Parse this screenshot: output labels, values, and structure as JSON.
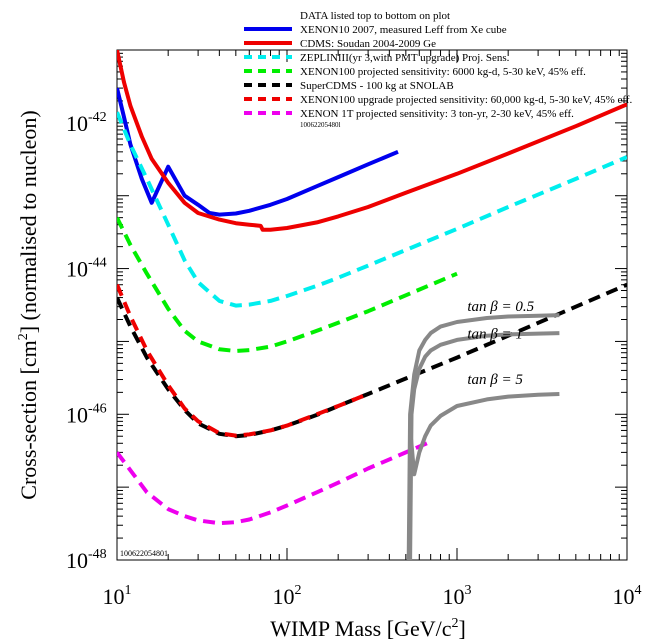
{
  "chart_data": {
    "type": "line",
    "xlabel": "WIMP Mass [GeV/c",
    "xlabel_sup": "2",
    "xlabel_end": "]",
    "ylabel": "Cross-section [cm",
    "ylabel_sup": "2",
    "ylabel_end": "] (normalised to nucleon)",
    "x_scale": "log",
    "y_scale": "log",
    "xlim": [
      10,
      10000
    ],
    "ylim": [
      1e-48,
      1e-41
    ],
    "x_ticks": [
      {
        "value": 10,
        "base": "10",
        "exp": "1"
      },
      {
        "value": 100,
        "base": "10",
        "exp": "2"
      },
      {
        "value": 1000,
        "base": "10",
        "exp": "3"
      },
      {
        "value": 10000,
        "base": "10",
        "exp": "4"
      }
    ],
    "y_ticks": [
      {
        "value": 1e-48,
        "base": "10",
        "exp": "-48"
      },
      {
        "value": 1e-46,
        "base": "10",
        "exp": "-46"
      },
      {
        "value": 1e-44,
        "base": "10",
        "exp": "-44"
      },
      {
        "value": 1e-42,
        "base": "10",
        "exp": "-42"
      }
    ],
    "legend_header": "DATA listed top to bottom on plot",
    "legend_id": "10062205480l",
    "legend_position": "top",
    "plot_stamp": "100622054801",
    "series": [
      {
        "name": "XENON10 2007, measured Leff from Xe cube",
        "color": "#0000ee",
        "dash": "solid",
        "x": [
          10,
          11,
          12,
          14,
          16,
          20,
          25,
          30,
          35,
          40,
          50,
          60,
          80,
          100,
          150,
          200,
          300,
          450
        ],
        "y": [
          3e-42,
          1.2e-42,
          5e-43,
          1.7e-43,
          8e-44,
          2.5e-43,
          1e-43,
          7.5e-44,
          5.8e-44,
          5.5e-44,
          5.7e-44,
          6.2e-44,
          7.5e-44,
          9e-44,
          1.35e-43,
          1.8e-43,
          2.7e-43,
          4e-43
        ]
      },
      {
        "name": "CDMS: Soudan 2004-2009 Ge",
        "color": "#ee0000",
        "dash": "solid",
        "x": [
          10,
          11,
          12,
          14,
          16,
          20,
          25,
          30,
          40,
          50,
          60,
          70,
          72,
          80,
          100,
          150,
          200,
          300,
          500,
          1000,
          2000,
          5000,
          10000
        ],
        "y": [
          1e-41,
          3.6e-42,
          1.7e-42,
          6.5e-43,
          3.2e-43,
          1.5e-43,
          8e-44,
          5.8e-44,
          4.7e-44,
          4.2e-44,
          4e-44,
          3.85e-44,
          3.4e-44,
          3.4e-44,
          3.6e-44,
          4.3e-44,
          5.2e-44,
          7e-44,
          1.1e-43,
          2e-43,
          3.8e-43,
          9e-43,
          1.8e-42
        ]
      },
      {
        "name": "ZEPLINIII(yr 3,with PMT upgrade) Proj. Sens.",
        "color": "#00eeee",
        "dash": "dashed",
        "x": [
          10,
          12,
          15,
          20,
          25,
          30,
          40,
          50,
          60,
          80,
          100,
          150,
          200,
          300,
          500,
          1000,
          2000,
          5000,
          10000
        ],
        "y": [
          1.4e-42,
          5e-43,
          1.7e-43,
          4e-44,
          1.3e-44,
          6.5e-45,
          3.6e-45,
          3.1e-45,
          3.2e-45,
          3.6e-45,
          4.2e-45,
          5.8e-45,
          7.5e-45,
          1.1e-44,
          1.8e-44,
          3.5e-44,
          7e-44,
          1.7e-43,
          3.4e-43
        ]
      },
      {
        "name": "XENON100 projected sensitivity: 6000 kg-d, 5-30 keV, 45% eff.",
        "color": "#00ee00",
        "dash": "dashed",
        "x": [
          10,
          12,
          15,
          20,
          25,
          30,
          40,
          50,
          60,
          80,
          100,
          150,
          200,
          300,
          500,
          1000
        ],
        "y": [
          5e-44,
          2.1e-44,
          8.5e-45,
          2.8e-45,
          1.4e-45,
          1e-45,
          7.8e-46,
          7.4e-46,
          7.6e-46,
          8.5e-46,
          1e-45,
          1.4e-45,
          1.8e-45,
          2.6e-45,
          4.3e-45,
          8.5e-45
        ]
      },
      {
        "name": "SuperCDMS - 100 kg at SNOLAB",
        "color": "#000000",
        "dash": "dashed",
        "x": [
          10,
          12,
          15,
          20,
          25,
          30,
          40,
          50,
          60,
          80,
          100,
          150,
          200,
          300,
          500,
          1000,
          2000,
          5000,
          10000
        ],
        "y": [
          4e-45,
          1.6e-45,
          6e-46,
          2.2e-46,
          1.15e-46,
          7.5e-47,
          5.4e-47,
          5e-47,
          5.2e-47,
          6e-47,
          7e-47,
          9.8e-47,
          1.3e-46,
          1.9e-46,
          3.1e-46,
          6e-46,
          1.2e-45,
          3e-45,
          6e-45
        ]
      },
      {
        "name": "XENON100 upgrade projected sensitivity: 60,000 kg-d, 5-30 keV, 45% eff.",
        "color": "#ee0000",
        "dash": "dashed",
        "x": [
          10,
          12,
          15,
          20,
          25,
          30,
          40,
          50,
          60,
          80,
          100,
          150,
          200,
          300
        ],
        "y": [
          6e-45,
          2.2e-45,
          7.5e-46,
          2.5e-46,
          1.2e-46,
          8e-47,
          5.5e-47,
          5.1e-47,
          5.3e-47,
          6e-47,
          7e-47,
          1e-46,
          1.3e-46,
          1.9e-46
        ]
      },
      {
        "name": "XENON 1T projected sensitivity: 3 ton-yr, 2-30 keV, 45% eff.",
        "color": "#ee00ee",
        "dash": "dashed",
        "x": [
          10,
          12,
          15,
          20,
          25,
          30,
          40,
          50,
          60,
          80,
          100,
          150,
          200,
          300,
          500,
          700
        ],
        "y": [
          3e-47,
          1.7e-47,
          8.5e-48,
          5e-48,
          4e-48,
          3.5e-48,
          3.2e-48,
          3.3e-48,
          3.6e-48,
          4.5e-48,
          5.6e-48,
          8.5e-48,
          1.15e-47,
          1.8e-47,
          3e-47,
          4.2e-47
        ]
      },
      {
        "name": "",
        "color": "#888888",
        "dash": "solid",
        "x": [
          530,
          540,
          560,
          600,
          650,
          700,
          800,
          1000,
          1500,
          2000,
          3000,
          4000
        ],
        "y": [
          1e-48,
          1e-46,
          2.2e-46,
          4.2e-46,
          6.2e-46,
          7.5e-46,
          9e-46,
          1.05e-45,
          1.2e-45,
          1.25e-45,
          1.28e-45,
          1.3e-45
        ]
      },
      {
        "name": "",
        "color": "#888888",
        "dash": "solid",
        "x": [
          520,
          530,
          560,
          600,
          650,
          700,
          800,
          1000,
          1500,
          2000,
          3000,
          4000
        ],
        "y": [
          1e-48,
          1e-46,
          3.5e-46,
          7.5e-46,
          1.05e-45,
          1.3e-45,
          1.6e-45,
          1.85e-45,
          2.1e-45,
          2.2e-45,
          2.25e-45,
          2.3e-45
        ]
      },
      {
        "name": "",
        "color": "#888888",
        "dash": "solid",
        "x": [
          525,
          535,
          560,
          600,
          650,
          700,
          800,
          1000,
          1500,
          2000,
          3000,
          4000
        ],
        "y": [
          1e-48,
          5e-47,
          1.5e-47,
          3e-47,
          5e-47,
          7e-47,
          9.5e-47,
          1.3e-46,
          1.6e-46,
          1.75e-46,
          1.85e-46,
          1.9e-46
        ]
      }
    ],
    "annotations": [
      {
        "text": "tan β = 0.5",
        "x": 1150,
        "y": 2.6e-45
      },
      {
        "text": "tan β = 1",
        "x": 1150,
        "y": 1.1e-45
      },
      {
        "text": "tan β = 5",
        "x": 1150,
        "y": 2.6e-46
      }
    ]
  }
}
